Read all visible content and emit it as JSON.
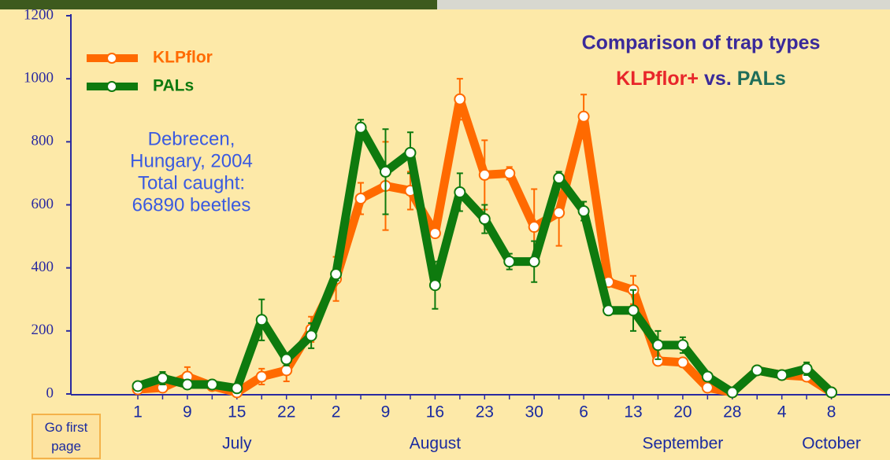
{
  "chart_data": {
    "type": "line",
    "title": "Comparison of trap types",
    "subtitle_parts": [
      {
        "text": "KLPflor+",
        "color": "#e8262a"
      },
      {
        "text": "vs.",
        "color": "#3a2a9a"
      },
      {
        "text": "PALs",
        "color": "#1f6e5a"
      }
    ],
    "annotation": [
      "Debrecen,",
      "Hungary,  2004",
      "Total caught:",
      "66890 beetles"
    ],
    "categories": [
      "1",
      null,
      "9",
      null,
      "15",
      null,
      "22",
      null,
      "2",
      null,
      "9",
      null,
      "16",
      null,
      "23",
      null,
      "30",
      null,
      "6",
      null,
      "13",
      null,
      "20",
      null,
      "28",
      null,
      "4",
      null,
      "8"
    ],
    "groups": [
      {
        "label": "July",
        "category": 4
      },
      {
        "label": "August",
        "category": 12
      },
      {
        "label": "September",
        "category": 22
      },
      {
        "label": "October",
        "category": 28
      }
    ],
    "series": [
      {
        "name": "KLPflor",
        "color": "#ff6a00",
        "values": [
          15,
          20,
          55,
          25,
          5,
          55,
          75,
          205,
          365,
          620,
          660,
          645,
          510,
          935,
          695,
          700,
          530,
          575,
          880,
          355,
          330,
          105,
          100,
          20,
          5,
          75,
          60,
          55,
          5
        ],
        "errors": [
          5,
          10,
          30,
          10,
          5,
          25,
          35,
          40,
          70,
          50,
          140,
          60,
          10,
          65,
          110,
          20,
          120,
          105,
          70,
          10,
          45,
          10,
          10,
          5,
          5,
          5,
          5,
          10,
          5
        ]
      },
      {
        "name": "PALs",
        "color": "#0e7a0e",
        "values": [
          25,
          50,
          30,
          30,
          18,
          235,
          110,
          185,
          380,
          845,
          705,
          765,
          345,
          640,
          555,
          420,
          420,
          685,
          580,
          265,
          265,
          155,
          155,
          55,
          5,
          75,
          60,
          80,
          5
        ],
        "errors": [
          5,
          20,
          5,
          5,
          5,
          65,
          20,
          40,
          20,
          25,
          135,
          65,
          75,
          60,
          45,
          25,
          65,
          20,
          30,
          10,
          65,
          45,
          25,
          5,
          5,
          5,
          5,
          20,
          5
        ]
      }
    ],
    "ylim": [
      0,
      1200
    ],
    "yticks": [
      0,
      200,
      400,
      600,
      800,
      1000,
      1200
    ],
    "button": [
      "Go first",
      "page"
    ]
  }
}
